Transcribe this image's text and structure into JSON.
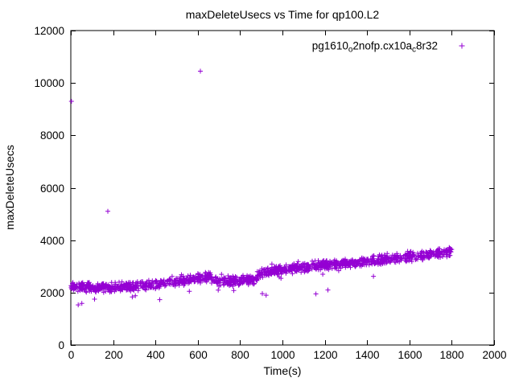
{
  "figure": {
    "background": "#ffffff",
    "border_color": "#000000",
    "text_color": "#000000"
  },
  "chart_data": {
    "type": "scatter",
    "title": "maxDeleteUsecs vs Time for qp100.L2",
    "xlabel": "Time(s)",
    "ylabel": "maxDeleteUsecs",
    "xlim": [
      0,
      2000
    ],
    "ylim": [
      0,
      12000
    ],
    "xticks": [
      0,
      200,
      400,
      600,
      800,
      1000,
      1200,
      1400,
      1600,
      1800,
      2000
    ],
    "yticks": [
      0,
      2000,
      4000,
      6000,
      8000,
      10000,
      12000
    ],
    "grid": false,
    "legend": {
      "position": "top-right",
      "marker": "plus",
      "label_plain": "pg1610o2nofp.cx10ac8r32",
      "label_segments": [
        {
          "text": "pg1610"
        },
        {
          "text": "o",
          "sub": true
        },
        {
          "text": "2nofp.cx10a"
        },
        {
          "text": "c",
          "sub": true
        },
        {
          "text": "8r32"
        }
      ]
    },
    "series": [
      {
        "name": "pg1610o2nofp.cx10ac8r32",
        "color": "#9400d3",
        "marker": "plus",
        "marker_half_px": 3,
        "point_count": 1400,
        "seed": 7,
        "spread": 210,
        "trend": [
          [
            0,
            2250
          ],
          [
            60,
            2220
          ],
          [
            120,
            2180
          ],
          [
            180,
            2190
          ],
          [
            240,
            2230
          ],
          [
            300,
            2240
          ],
          [
            360,
            2260
          ],
          [
            420,
            2300
          ],
          [
            480,
            2380
          ],
          [
            540,
            2460
          ],
          [
            600,
            2540
          ],
          [
            660,
            2600
          ],
          [
            690,
            2430
          ],
          [
            750,
            2420
          ],
          [
            810,
            2450
          ],
          [
            870,
            2520
          ],
          [
            900,
            2760
          ],
          [
            960,
            2850
          ],
          [
            1020,
            2900
          ],
          [
            1080,
            2950
          ],
          [
            1140,
            3000
          ],
          [
            1200,
            3050
          ],
          [
            1260,
            3100
          ],
          [
            1320,
            3140
          ],
          [
            1380,
            3180
          ],
          [
            1440,
            3240
          ],
          [
            1500,
            3300
          ],
          [
            1560,
            3340
          ],
          [
            1620,
            3390
          ],
          [
            1680,
            3430
          ],
          [
            1740,
            3490
          ],
          [
            1800,
            3550
          ]
        ],
        "outliers": [
          [
            3,
            9300
          ],
          [
            175,
            5100
          ],
          [
            612,
            10450
          ],
          [
            35,
            1530
          ],
          [
            52,
            1590
          ],
          [
            112,
            1750
          ],
          [
            305,
            1880
          ],
          [
            420,
            1730
          ],
          [
            560,
            2050
          ],
          [
            770,
            2080
          ],
          [
            905,
            1960
          ],
          [
            923,
            1900
          ],
          [
            1158,
            1950
          ],
          [
            1215,
            2100
          ],
          [
            1430,
            2620
          ]
        ]
      }
    ]
  }
}
